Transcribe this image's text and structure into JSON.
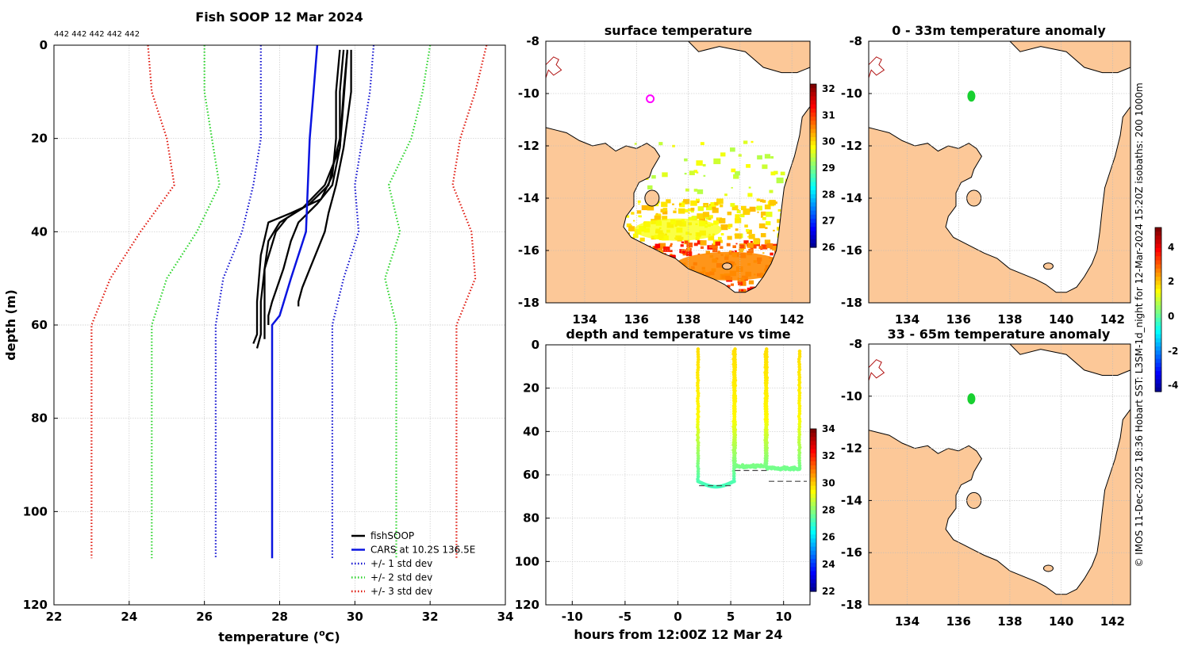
{
  "chart_data": [
    {
      "id": "profile",
      "type": "line",
      "title": "Fish SOOP 12 Mar 2024",
      "header_ids": "442 442 442 442 442",
      "xlabel": "temperature (",
      "xlabel_sup": "o",
      "xlabel_tail": "C)",
      "ylabel": "depth (m)",
      "xlim": [
        22,
        34
      ],
      "ylim": [
        120,
        0
      ],
      "xticks": [
        "22",
        "24",
        "26",
        "28",
        "30",
        "32",
        "34"
      ],
      "yticks": [
        "0",
        "20",
        "40",
        "60",
        "80",
        "100",
        "120"
      ],
      "legend": [
        "fishSOOP",
        "CARS at 10.2S 136.5E",
        "+/- 1 std dev",
        "+/- 2 std dev",
        "+/- 3 std dev"
      ],
      "cars": {
        "x": [
          29.0,
          28.9,
          28.8,
          28.7,
          28.3,
          28.0,
          27.8,
          27.8,
          27.8
        ],
        "y": [
          0,
          10,
          20,
          40,
          50,
          58,
          60,
          100,
          110
        ]
      },
      "std1": {
        "left": {
          "x": [
            27.5,
            27.5,
            27.5,
            27.3,
            27.0,
            26.5,
            26.3,
            26.3,
            26.3
          ],
          "y": [
            0,
            10,
            20,
            30,
            40,
            50,
            60,
            100,
            110
          ]
        },
        "right": {
          "x": [
            30.5,
            30.4,
            30.2,
            30.0,
            30.1,
            29.7,
            29.4,
            29.4,
            29.4
          ],
          "y": [
            0,
            10,
            20,
            30,
            40,
            50,
            60,
            100,
            110
          ]
        }
      },
      "std2": {
        "left": {
          "x": [
            26.0,
            26.0,
            26.2,
            26.4,
            25.8,
            25.0,
            24.6,
            24.6,
            24.6
          ],
          "y": [
            0,
            10,
            20,
            30,
            40,
            50,
            60,
            100,
            110
          ]
        },
        "right": {
          "x": [
            32.0,
            31.8,
            31.5,
            30.9,
            31.2,
            30.8,
            31.1,
            31.1,
            31.1
          ],
          "y": [
            0,
            10,
            20,
            30,
            40,
            50,
            60,
            100,
            110
          ]
        }
      },
      "std3": {
        "left": {
          "x": [
            24.5,
            24.6,
            25.0,
            25.2,
            24.3,
            23.5,
            23.0,
            23.0,
            23.0
          ],
          "y": [
            0,
            10,
            20,
            30,
            40,
            50,
            60,
            100,
            110
          ]
        },
        "right": {
          "x": [
            33.5,
            33.2,
            32.8,
            32.6,
            33.1,
            33.2,
            32.7,
            32.7,
            32.7
          ],
          "y": [
            0,
            10,
            20,
            30,
            40,
            50,
            60,
            100,
            110
          ]
        }
      },
      "fish": [
        {
          "x": [
            29.6,
            29.5,
            29.5,
            29.4,
            29.1,
            28.3,
            27.7,
            27.5,
            27.4,
            27.4,
            27.3
          ],
          "y": [
            1,
            10,
            20,
            28,
            33,
            36,
            38,
            45,
            55,
            62,
            64
          ]
        },
        {
          "x": [
            29.7,
            29.6,
            29.6,
            29.3,
            28.8,
            28.2,
            27.9,
            27.6,
            27.5,
            27.5,
            27.4
          ],
          "y": [
            1,
            10,
            20,
            30,
            34,
            37,
            40,
            48,
            55,
            62,
            65
          ]
        },
        {
          "x": [
            29.8,
            29.7,
            29.6,
            29.2,
            28.6,
            28.0,
            27.7,
            27.6,
            27.6,
            27.6,
            27.6
          ],
          "y": [
            1,
            10,
            22,
            30,
            35,
            38,
            42,
            48,
            56,
            62,
            63
          ]
        },
        {
          "x": [
            29.8,
            29.7,
            29.6,
            29.4,
            29.0,
            28.5,
            28.3,
            28.1,
            27.8,
            27.7,
            27.7
          ],
          "y": [
            1,
            12,
            22,
            30,
            34,
            38,
            42,
            48,
            55,
            58,
            60
          ]
        },
        {
          "x": [
            29.9,
            29.9,
            29.7,
            29.5,
            29.3,
            29.2,
            29.0,
            28.8,
            28.6,
            28.5,
            28.5
          ],
          "y": [
            1,
            10,
            22,
            30,
            36,
            40,
            44,
            48,
            52,
            55,
            56
          ]
        }
      ]
    },
    {
      "id": "sst",
      "type": "heatmap",
      "title": "surface temperature",
      "xlim": [
        132.5,
        142.7
      ],
      "ylim": [
        -18,
        -8
      ],
      "xticks": [
        "134",
        "136",
        "138",
        "140",
        "142"
      ],
      "yticks": [
        "-8",
        "-10",
        "-12",
        "-14",
        "-16",
        "-18"
      ],
      "colorbar": {
        "min": 26,
        "max": 32,
        "ticks": [
          "26",
          "27",
          "28",
          "29",
          "30",
          "31",
          "32"
        ]
      },
      "marker": {
        "lon": 136.5,
        "lat": -10.2
      }
    },
    {
      "id": "anom1",
      "type": "heatmap",
      "title": "0 - 33m temperature anomaly",
      "xlim": [
        132.5,
        142.7
      ],
      "ylim": [
        -18,
        -8
      ],
      "xticks": [
        "134",
        "136",
        "138",
        "140",
        "142"
      ],
      "yticks": [
        "-8",
        "-10",
        "-12",
        "-14",
        "-16",
        "-18"
      ],
      "marker": {
        "lon": 136.5,
        "lat": -10.1
      }
    },
    {
      "id": "anom2",
      "type": "heatmap",
      "title": "33 - 65m temperature anomaly",
      "xlim": [
        132.5,
        142.7
      ],
      "ylim": [
        -18,
        -8
      ],
      "xticks": [
        "134",
        "136",
        "138",
        "140",
        "142"
      ],
      "yticks": [
        "-8",
        "-10",
        "-12",
        "-14",
        "-16",
        "-18"
      ],
      "marker": {
        "lon": 136.5,
        "lat": -10.1
      },
      "colorbar": {
        "min": -4,
        "max": 5,
        "ticks": [
          "4",
          "2",
          "0",
          "-2",
          "-4"
        ]
      }
    },
    {
      "id": "timeseries",
      "type": "scatter",
      "title": "depth and temperature vs time",
      "xlabel": "hours from 12:00Z 12 Mar 24",
      "xlim": [
        -12.5,
        12.5
      ],
      "ylim": [
        120,
        0
      ],
      "xticks": [
        "-10",
        "-5",
        "0",
        "5",
        "10"
      ],
      "yticks": [
        "0",
        "20",
        "40",
        "60",
        "80",
        "100",
        "120"
      ],
      "colorbar": {
        "min": 22,
        "max": 34,
        "ticks": [
          "22",
          "24",
          "26",
          "28",
          "30",
          "32",
          "34"
        ]
      },
      "casts": [
        {
          "t_down": 1.9,
          "t_up": 5.3,
          "bottom": 63
        },
        {
          "t_down": 5.4,
          "t_up": 8.3,
          "bottom": 56
        },
        {
          "t_down": 8.4,
          "t_up": 11.5,
          "bottom": 57
        }
      ],
      "bathy": [
        {
          "t": [
            2.0,
            5.2
          ],
          "depth": 65
        },
        {
          "t": [
            5.4,
            8.4
          ],
          "depth": 58
        },
        {
          "t": [
            8.6,
            12.2
          ],
          "depth": 63
        }
      ]
    }
  ],
  "credit": "© IMOS 11-Dec-2025 18:36 Hobart SST: L3SM-1d_night for 12-Mar-2024 15:20Z isobaths: 200  1000m"
}
